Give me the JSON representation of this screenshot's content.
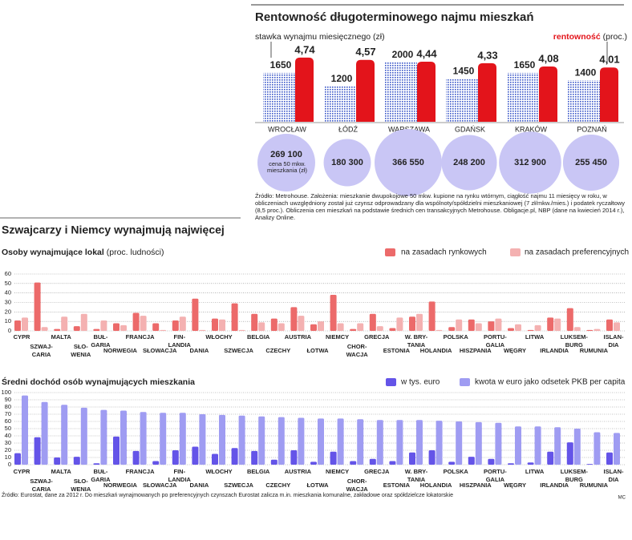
{
  "chart_data": [
    {
      "type": "bar",
      "title": "Rentowność długoterminowego najmu mieszkań",
      "categories": [
        "WROCŁAW",
        "ŁÓDŹ",
        "WARSZAWA",
        "GDAŃSK",
        "KRAKÓW",
        "POZNAŃ"
      ],
      "series": [
        {
          "name": "stawka wynajmu miesięcznego (zł)",
          "color": "#3a56c8",
          "values": [
            1650,
            1200,
            2000,
            1450,
            1650,
            1400
          ]
        },
        {
          "name": "rentowność",
          "unit": "(proc.)",
          "color": "#e3141b",
          "values": [
            4.74,
            4.57,
            4.44,
            4.33,
            4.08,
            4.01
          ],
          "value_labels": [
            "4,74",
            "4,57",
            "4,44",
            "4,33",
            "4,08",
            "4,01"
          ]
        }
      ],
      "prices": [
        269100,
        180300,
        366550,
        248200,
        312900,
        255450
      ],
      "price_labels": [
        "269 100",
        "180 300",
        "366 550",
        "248 200",
        "312 900",
        "255 450"
      ],
      "price_note": "cena 50 mkw. mieszkania (zł)",
      "price_color": "#c9c6f5",
      "note": "Źródło: Metrohouse. Założenia: mieszkanie dwupokojowe 50 mkw. kupione na rynku wtórnym, ciągłość najmu 11 miesięcy w roku, w obliczeniach uwzględniony został już czynsz odprowadzany dla wspólnoty/spółdzielni mieszkaniowej (7 zł/mkw./mies.) i podatek ryczałtowy (8,5 proc.). Obliczenia cen mieszkań na podstawie średnich cen transakcyjnych Metrohouse. Obligacje.pl, NBP (dane na kwiecień 2014 r.), Analizy Online."
    },
    {
      "type": "bar",
      "heading": "Szwajcarzy i Niemcy wynajmują najwięcej",
      "title": "Osoby wynajmujące lokal",
      "subtitle": "(proc. ludności)",
      "categories": [
        "CYPR",
        "SZWAJ-CARIA",
        "MALTA",
        "SŁO-WENIA",
        "BUŁ-GARIA",
        "NORWEGIA",
        "FRANCJA",
        "SŁOWACJA",
        "FIN-LANDIA",
        "DANIA",
        "WŁOCHY",
        "SZWECJA",
        "BELGIA",
        "CZECHY",
        "AUSTRIA",
        "ŁOTWA",
        "NIEMCY",
        "CHOR-WACJA",
        "GRECJA",
        "ESTONIA",
        "W. BRY-TANIA",
        "HOLANDIA",
        "POLSKA",
        "HISZPANIA",
        "PORTU-GALIA",
        "WĘGRY",
        "LITWA",
        "IRLANDIA",
        "LUKSEM-BURG",
        "RUMUNIA",
        "ISLAN-DIA"
      ],
      "series": [
        {
          "name": "na zasadach rynkowych",
          "color": "#ec6a6a",
          "values": [
            11,
            51,
            2,
            5,
            2,
            8,
            19,
            8,
            11,
            34,
            13,
            29,
            18,
            13,
            25,
            7,
            38,
            2,
            18,
            3,
            15,
            31,
            4,
            12,
            10,
            3,
            1,
            14,
            24,
            1,
            12
          ]
        },
        {
          "name": "na zasadach preferencyjnych",
          "color": "#f4b1b1",
          "values": [
            14,
            4,
            15,
            18,
            11,
            6,
            16,
            1,
            15,
            1,
            12,
            1,
            9,
            8,
            16,
            10,
            8,
            8,
            5,
            14,
            18,
            1,
            12,
            8,
            13,
            7,
            6,
            13,
            4,
            2,
            9
          ]
        }
      ],
      "ylim": [
        0,
        60
      ],
      "yticks": [
        0,
        10,
        20,
        30,
        40,
        50,
        60
      ],
      "grid": true
    },
    {
      "type": "bar",
      "title": "Średni dochód osób wynajmujących mieszkania",
      "categories": [
        "CYPR",
        "SZWAJ-CARIA",
        "MALTA",
        "SŁO-WENIA",
        "BUŁ-GARIA",
        "NORWEGIA",
        "FRANCJA",
        "SŁOWACJA",
        "FIN-LANDIA",
        "DANIA",
        "WŁOCHY",
        "SZWECJA",
        "BELGIA",
        "CZECHY",
        "AUSTRIA",
        "ŁOTWA",
        "NIEMCY",
        "CHOR-WACJA",
        "GRECJA",
        "ESTONIA",
        "W. BRY-TANIA",
        "HOLANDIA",
        "POLSKA",
        "HISZPANIA",
        "PORTU-GALIA",
        "WĘGRY",
        "LITWA",
        "IRLANDIA",
        "LUKSEM-BURG",
        "RUMUNIA",
        "ISLAN-DIA"
      ],
      "series": [
        {
          "name": "w tys. euro",
          "color": "#6454e8",
          "values": [
            16,
            38,
            10,
            11,
            2,
            39,
            19,
            5,
            20,
            25,
            15,
            23,
            19,
            7,
            20,
            4,
            18,
            5,
            8,
            5,
            17,
            20,
            4,
            11,
            8,
            2,
            3,
            18,
            31,
            1,
            17
          ]
        },
        {
          "name": "kwota w euro jako odsetek PKB per capita",
          "color": "#9f9cf2",
          "values": [
            96,
            87,
            83,
            79,
            76,
            75,
            73,
            72,
            72,
            70,
            69,
            68,
            67,
            66,
            65,
            64,
            64,
            63,
            62,
            62,
            62,
            61,
            60,
            59,
            58,
            53,
            53,
            52,
            50,
            45,
            44
          ]
        }
      ],
      "ylim": [
        0,
        100
      ],
      "yticks": [
        0,
        10,
        20,
        30,
        40,
        50,
        60,
        70,
        80,
        90,
        100
      ],
      "grid": true,
      "note": "Źródło: Eurostat, dane za 2012 r. Do mieszkań wynajmowanych po preferencyjnych czynszach Eurostat zalicza m.in. mieszkania komunalne, zakładowe oraz spółdzielcze lokatorskie",
      "credit": "MC"
    }
  ]
}
